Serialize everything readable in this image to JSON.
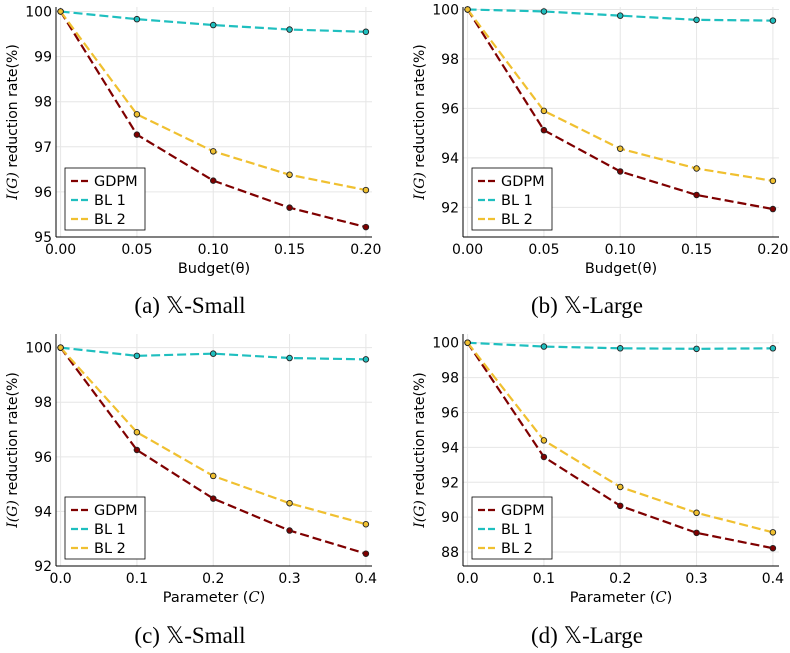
{
  "figure": {
    "series_colors": {
      "GDPM": "#7f0000",
      "BL 1": "#1fbfbf",
      "BL 2": "#f0c030"
    },
    "grid_color": "#e6e6e6"
  },
  "chart_data": [
    {
      "type": "line",
      "caption": "(a) 𝕏-Small",
      "xlabel": "Budget(θ)",
      "ylabel": "I(G) reduction rate(%)",
      "ylabel_italic": "I(G)",
      "ylabel_rest": " reduction rate(%)",
      "x": [
        0.0,
        0.05,
        0.1,
        0.15,
        0.2
      ],
      "xticks": [
        "0.00",
        "0.05",
        "0.10",
        "0.15",
        "0.20"
      ],
      "xlim": [
        -0.003,
        0.204
      ],
      "yticks": [
        95,
        96,
        97,
        98,
        99,
        100
      ],
      "ylim": [
        95.0,
        100.1
      ],
      "series": [
        {
          "name": "GDPM",
          "values": [
            100.0,
            97.27,
            96.25,
            95.65,
            95.22
          ]
        },
        {
          "name": "BL 1",
          "values": [
            100.0,
            99.83,
            99.7,
            99.6,
            99.55
          ]
        },
        {
          "name": "BL 2",
          "values": [
            100.0,
            97.72,
            96.9,
            96.38,
            96.04
          ]
        }
      ],
      "legend": [
        "GDPM",
        "BL 1",
        "BL 2"
      ],
      "legend_position": "bottom-left"
    },
    {
      "type": "line",
      "caption": "(b) 𝕏-Large",
      "xlabel": "Budget(θ)",
      "ylabel": "I(G) reduction rate(%)",
      "ylabel_italic": "I(G)",
      "ylabel_rest": " reduction rate(%)",
      "x": [
        0.0,
        0.05,
        0.1,
        0.15,
        0.2
      ],
      "xticks": [
        "0.00",
        "0.05",
        "0.10",
        "0.15",
        "0.20"
      ],
      "xlim": [
        -0.003,
        0.204
      ],
      "yticks": [
        92,
        94,
        96,
        98,
        100
      ],
      "ylim": [
        90.8,
        100.1
      ],
      "series": [
        {
          "name": "GDPM",
          "values": [
            100.0,
            95.12,
            93.45,
            92.5,
            91.93
          ]
        },
        {
          "name": "BL 1",
          "values": [
            100.0,
            99.92,
            99.75,
            99.58,
            99.55
          ]
        },
        {
          "name": "BL 2",
          "values": [
            100.0,
            95.9,
            94.37,
            93.57,
            93.07
          ]
        }
      ],
      "legend": [
        "GDPM",
        "BL 1",
        "BL 2"
      ],
      "legend_position": "bottom-left"
    },
    {
      "type": "line",
      "caption": "(c) 𝕏-Small",
      "xlabel": "Parameter (C)",
      "xlabel_plain": "Parameter (",
      "xlabel_italic": "C",
      "xlabel_close": ")",
      "ylabel": "I(G) reduction rate(%)",
      "ylabel_italic": "I(G)",
      "ylabel_rest": " reduction rate(%)",
      "x": [
        0.0,
        0.1,
        0.2,
        0.3,
        0.4
      ],
      "xticks": [
        "0.0",
        "0.1",
        "0.2",
        "0.3",
        "0.4"
      ],
      "xlim": [
        -0.006,
        0.408
      ],
      "yticks": [
        92,
        94,
        96,
        98,
        100
      ],
      "ylim": [
        92.0,
        100.5
      ],
      "series": [
        {
          "name": "GDPM",
          "values": [
            100.0,
            96.25,
            94.47,
            93.3,
            92.45
          ]
        },
        {
          "name": "BL 1",
          "values": [
            100.0,
            99.7,
            99.78,
            99.62,
            99.57
          ]
        },
        {
          "name": "BL 2",
          "values": [
            100.0,
            96.9,
            95.3,
            94.3,
            93.53
          ]
        }
      ],
      "legend": [
        "GDPM",
        "BL 1",
        "BL 2"
      ],
      "legend_position": "bottom-left"
    },
    {
      "type": "line",
      "caption": "(d) 𝕏-Large",
      "xlabel": "Parameter (C)",
      "xlabel_plain": "Parameter (",
      "xlabel_italic": "C",
      "xlabel_close": ")",
      "ylabel": "I(G) reduction rate(%)",
      "ylabel_italic": "I(G)",
      "ylabel_rest": " reduction rate(%)",
      "x": [
        0.0,
        0.1,
        0.2,
        0.3,
        0.4
      ],
      "xticks": [
        "0.0",
        "0.1",
        "0.2",
        "0.3",
        "0.4"
      ],
      "xlim": [
        -0.006,
        0.408
      ],
      "yticks": [
        88,
        90,
        92,
        94,
        96,
        98,
        100
      ],
      "ylim": [
        87.2,
        100.5
      ],
      "series": [
        {
          "name": "GDPM",
          "values": [
            100.0,
            93.45,
            90.65,
            89.1,
            88.22
          ]
        },
        {
          "name": "BL 1",
          "values": [
            100.0,
            99.78,
            99.68,
            99.65,
            99.68
          ]
        },
        {
          "name": "BL 2",
          "values": [
            100.0,
            94.4,
            91.73,
            90.25,
            89.13
          ]
        }
      ],
      "legend": [
        "GDPM",
        "BL 1",
        "BL 2"
      ],
      "legend_position": "bottom-left"
    }
  ]
}
